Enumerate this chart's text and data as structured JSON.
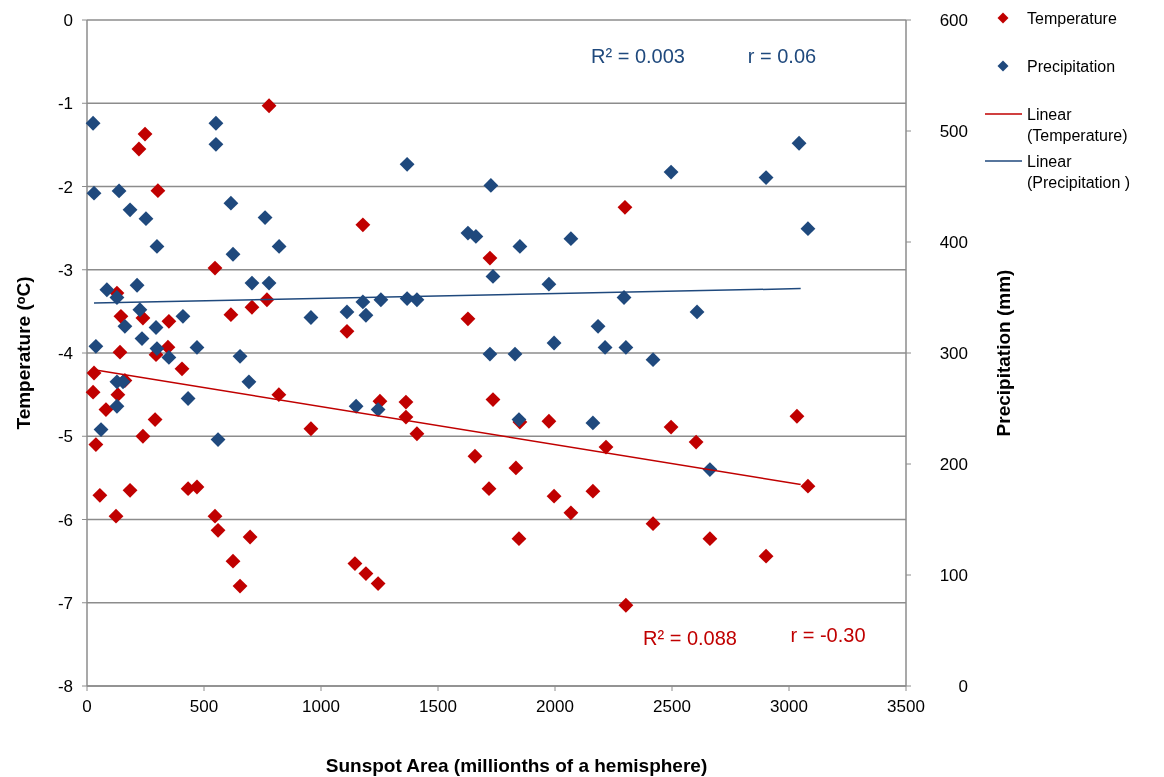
{
  "chart_data": {
    "type": "scatter",
    "xlabel": "Sunspot Area (millionths of a hemisphere)",
    "ylabel": "Temperature (ᵒC)",
    "y2label": "Precipitation (mm)",
    "xlim": [
      0,
      3500
    ],
    "xticks": [
      0,
      500,
      1000,
      1500,
      2000,
      2500,
      3000,
      3500
    ],
    "ylim": [
      -8,
      0
    ],
    "yticks": [
      -8,
      -7,
      -6,
      -5,
      -4,
      -3,
      -2,
      -1,
      0
    ],
    "y2lim": [
      0,
      600
    ],
    "y2ticks": [
      0,
      100,
      200,
      300,
      400,
      500,
      600
    ],
    "grid": "y",
    "legend": "right",
    "marker": "diamond",
    "annotations": [
      "R² = 0.003",
      "r = 0.06",
      "R² = 0.088",
      "r = -0.30"
    ],
    "series": [
      {
        "name": "Temperature",
        "color": "#c00000",
        "x": [
          30,
          26,
          38,
          55,
          81,
          124,
          128,
          132,
          141,
          145,
          162,
          184,
          222,
          248,
          303,
          291,
          295,
          239,
          239,
          350,
          346,
          406,
          432,
          470,
          547,
          560,
          547,
          624,
          615,
          654,
          697,
          705,
          769,
          778,
          820,
          957,
          1111,
          1179,
          1145,
          1192,
          1244,
          1252,
          1363,
          1363,
          1410,
          1628,
          1658,
          1722,
          1735,
          1718,
          1833,
          1846,
          1850,
          1974,
          1996,
          2068,
          2162,
          2218,
          2299,
          2303,
          2419,
          2496,
          2603,
          2662,
          2902,
          3034,
          3081
        ],
        "values": [
          -4.24,
          -4.47,
          -5.1,
          -5.71,
          -4.68,
          -5.96,
          -3.28,
          -4.5,
          -3.99,
          -3.56,
          -4.33,
          -5.65,
          -1.55,
          -1.37,
          -2.05,
          -4.8,
          -4.02,
          -3.58,
          -5.0,
          -3.62,
          -3.93,
          -4.19,
          -5.63,
          -5.61,
          -5.96,
          -6.13,
          -2.98,
          -6.5,
          -3.54,
          -6.8,
          -6.21,
          -3.45,
          -3.36,
          -1.03,
          -4.5,
          -4.91,
          -3.74,
          -2.46,
          -6.53,
          -6.65,
          -6.77,
          -4.58,
          -4.59,
          -4.77,
          -4.97,
          -3.59,
          -5.24,
          -2.86,
          -4.56,
          -5.63,
          -5.38,
          -6.23,
          -4.83,
          -4.82,
          -5.72,
          -5.92,
          -5.66,
          -5.13,
          -2.25,
          -7.03,
          -6.05,
          -4.89,
          -5.07,
          -6.23,
          -6.44,
          -4.76,
          -5.6
        ]
      },
      {
        "name": "Precipitation",
        "axis": "y2",
        "color": "#1f497d",
        "x": [
          26,
          30,
          137,
          184,
          252,
          299,
          551,
          551,
          615,
          761,
          821,
          624,
          1368,
          1726,
          1628,
          1662,
          1735,
          85,
          128,
          214,
          226,
          162,
          295,
          235,
          410,
          38,
          299,
          350,
          470,
          654,
          705,
          778,
          957,
          1111,
          1179,
          1192,
          1256,
          1368,
          1410,
          1722,
          128,
          154,
          128,
          60,
          432,
          692,
          560,
          1150,
          1244,
          1850,
          2068,
          2496,
          2902,
          3043,
          3081,
          1974,
          2295,
          2607,
          2184,
          1996,
          1829,
          2214,
          2303,
          2419,
          1846,
          2162,
          2662
        ],
        "values": [
          507,
          444,
          446,
          429,
          421,
          396,
          507,
          488,
          435,
          422,
          396,
          389,
          470,
          451,
          408,
          405,
          369,
          357,
          350,
          361,
          339,
          324,
          323,
          313,
          333,
          306,
          304,
          296,
          305,
          297,
          363,
          363,
          332,
          337,
          346,
          334,
          348,
          349,
          348,
          299,
          274,
          274,
          252,
          231,
          259,
          274,
          222,
          252,
          249,
          396,
          403,
          463,
          458,
          489,
          412,
          362,
          350,
          337,
          324,
          309,
          299,
          305,
          305,
          294,
          240,
          237,
          195
        ]
      },
      {
        "name": "Linear (Temperature)",
        "type": "line",
        "marker": "none",
        "color": "#c00000",
        "x": [
          30,
          3050
        ],
        "values": [
          -4.2,
          -5.58
        ]
      },
      {
        "name": "Linear (Precipitation )",
        "type": "line",
        "marker": "none",
        "axis": "y2",
        "color": "#1f497d",
        "x": [
          30,
          3050
        ],
        "values": [
          345,
          358
        ]
      }
    ]
  }
}
